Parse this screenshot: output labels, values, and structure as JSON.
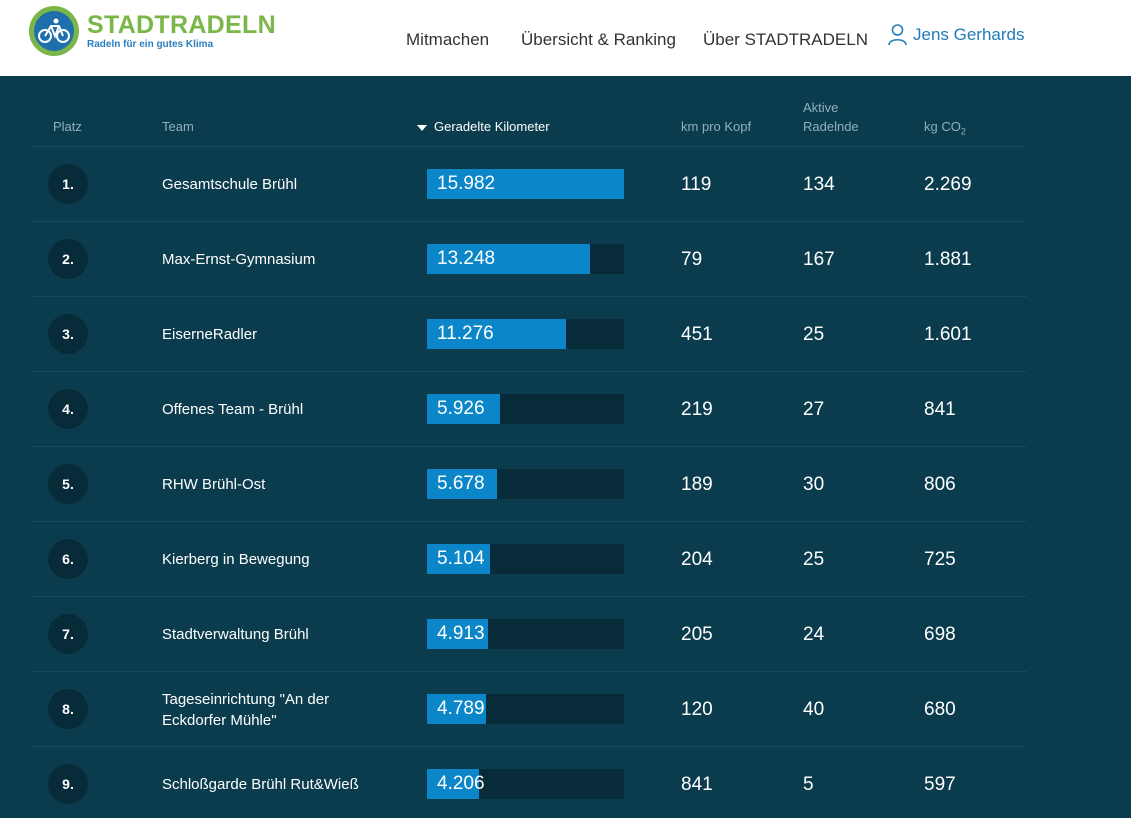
{
  "brand": {
    "name": "STADTRADELN",
    "claim": "Radeln für ein gutes Klima",
    "colors": {
      "green": "#7ab648",
      "blue": "#1f6fae",
      "background": "#0b3c4e",
      "bar": "#0b87c9"
    }
  },
  "nav": {
    "items": [
      "Mitmachen",
      "Übersicht & Ranking",
      "Über STADTRADELN"
    ],
    "user_name": "Jens Gerhards",
    "user_icon": "user-icon"
  },
  "table": {
    "headers": {
      "place": "Platz",
      "team": "Team",
      "km": "Geradelte Kilometer",
      "per_head": "km pro Kopf",
      "active_1": "Aktive",
      "active_2": "Radelnde",
      "co2_prefix": "kg CO",
      "co2_sub": "2"
    },
    "sort_icon": "sort-desc-icon",
    "rows": [
      {
        "rank": "1.",
        "team": "Gesamtschule Brühl",
        "km": "15.982",
        "km_value": 15982,
        "per_head": "119",
        "active": "134",
        "co2": "2.269"
      },
      {
        "rank": "2.",
        "team": "Max-Ernst-Gymnasium",
        "km": "13.248",
        "km_value": 13248,
        "per_head": "79",
        "active": "167",
        "co2": "1.881"
      },
      {
        "rank": "3.",
        "team": "EiserneRadler",
        "km": "11.276",
        "km_value": 11276,
        "per_head": "451",
        "active": "25",
        "co2": "1.601"
      },
      {
        "rank": "4.",
        "team": "Offenes Team - Brühl",
        "km": "5.926",
        "km_value": 5926,
        "per_head": "219",
        "active": "27",
        "co2": "841"
      },
      {
        "rank": "5.",
        "team": "RHW Brühl-Ost",
        "km": "5.678",
        "km_value": 5678,
        "per_head": "189",
        "active": "30",
        "co2": "806"
      },
      {
        "rank": "6.",
        "team": "Kierberg in Bewegung",
        "km": "5.104",
        "km_value": 5104,
        "per_head": "204",
        "active": "25",
        "co2": "725"
      },
      {
        "rank": "7.",
        "team": "Stadtverwaltung Brühl",
        "km": "4.913",
        "km_value": 4913,
        "per_head": "205",
        "active": "24",
        "co2": "698"
      },
      {
        "rank": "8.",
        "team": "Tageseinrichtung \"An der Eckdorfer Mühle\"",
        "km": "4.789",
        "km_value": 4789,
        "per_head": "120",
        "active": "40",
        "co2": "680"
      },
      {
        "rank": "9.",
        "team": "Schloßgarde Brühl Rut&Wieß",
        "km": "4.206",
        "km_value": 4206,
        "per_head": "841",
        "active": "5",
        "co2": "597"
      }
    ]
  }
}
